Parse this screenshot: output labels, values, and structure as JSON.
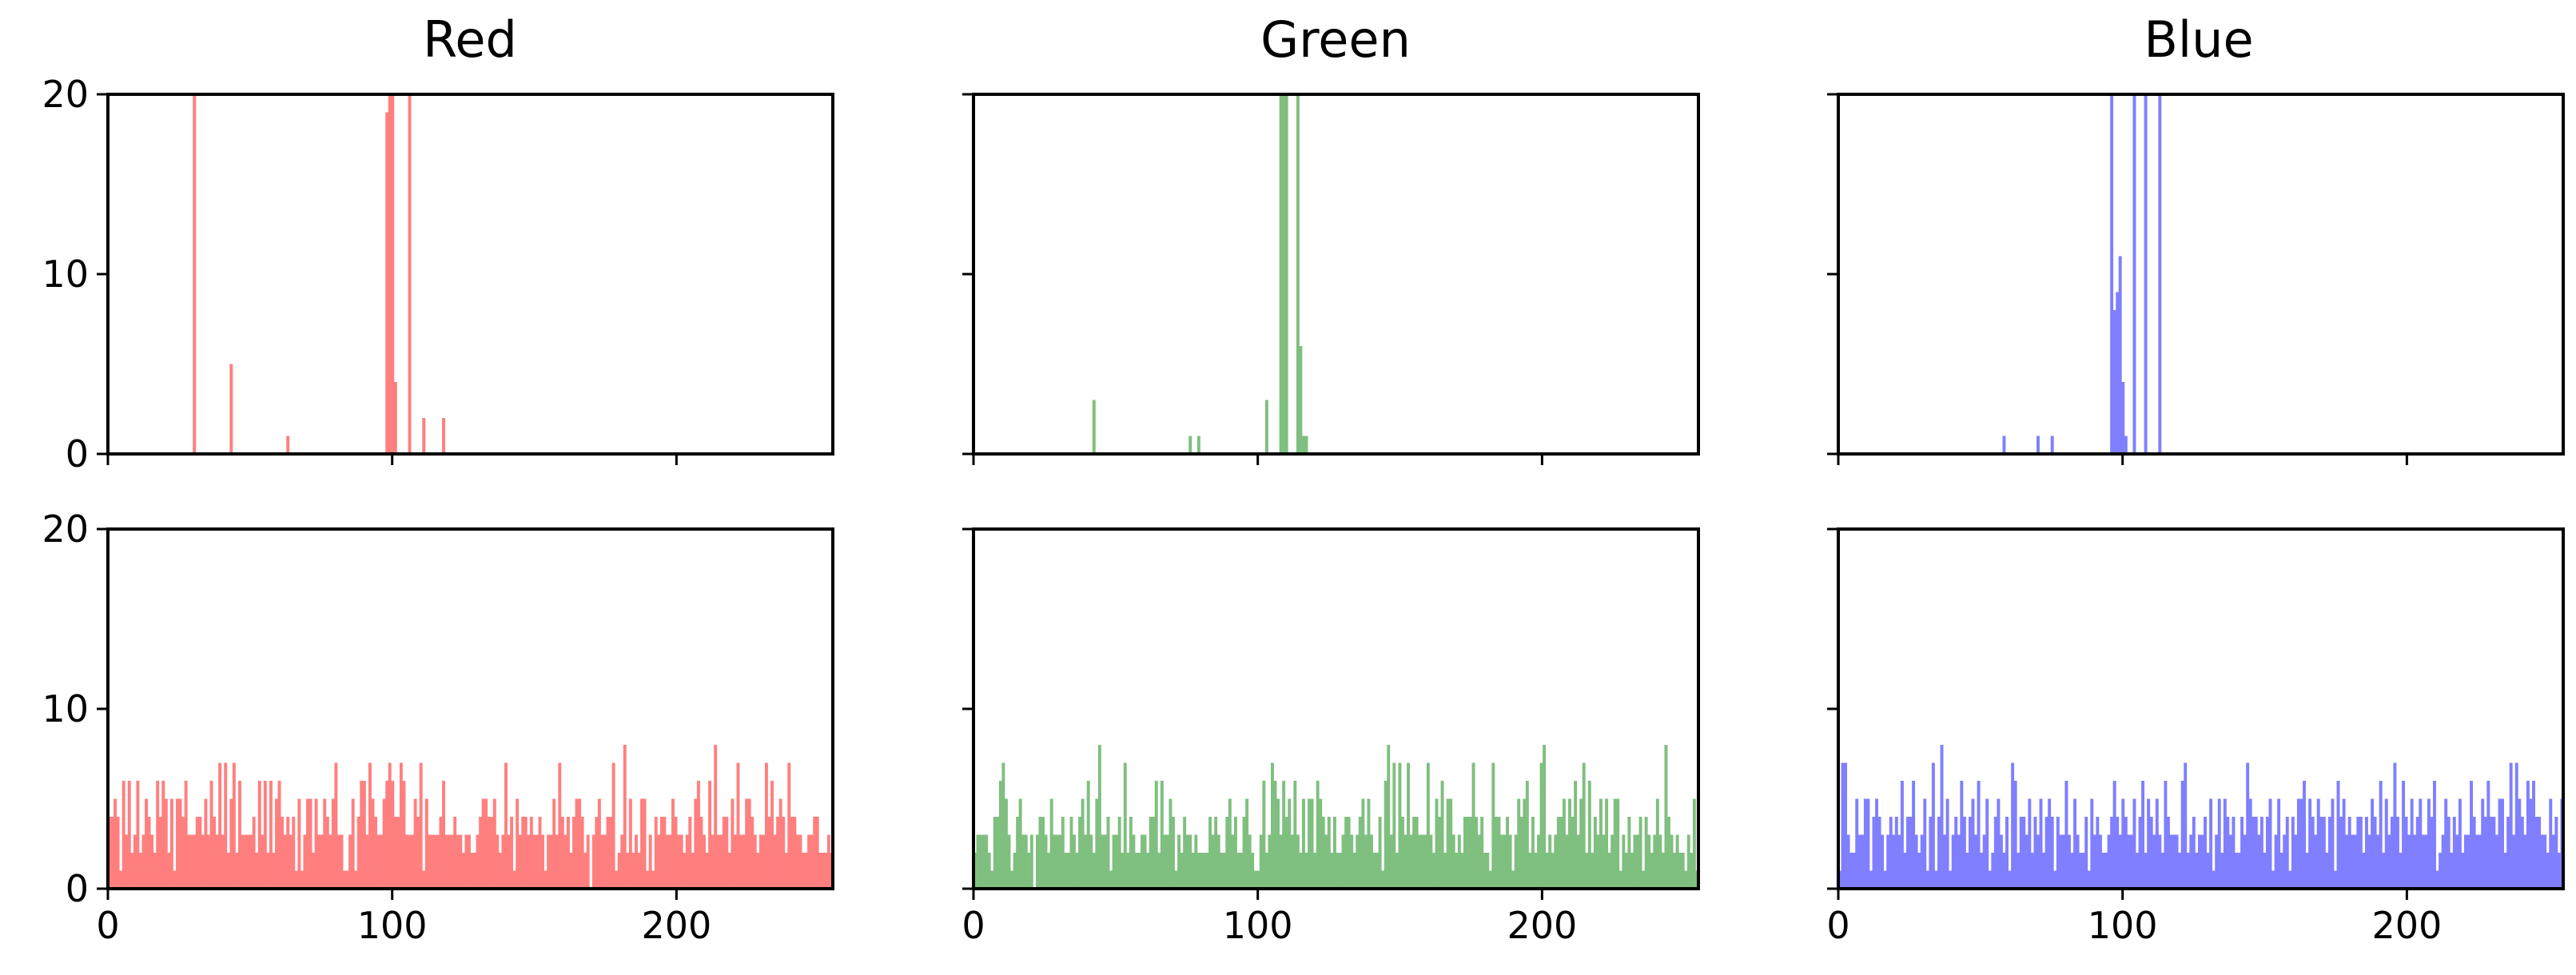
{
  "chart_data": {
    "type": "histogram-grid",
    "rows": 2,
    "columns": 3,
    "column_titles": [
      "Red",
      "Green",
      "Blue"
    ],
    "xlim": [
      0,
      255
    ],
    "ylim": [
      0,
      20
    ],
    "x_ticks": [
      0,
      100,
      200
    ],
    "y_ticks": [
      0,
      10,
      20
    ],
    "x_tick_labels_on_bottom_row_only": true,
    "y_tick_labels_on_first_column_only": true,
    "grid": false,
    "colors": {
      "Red": "#ff7f7f",
      "Green": "#7fbf7f",
      "Blue": "#7f7fff"
    },
    "panels": [
      {
        "row": 0,
        "column": "Red",
        "bins": [
          [
            30,
            60
          ],
          [
            43,
            5
          ],
          [
            63,
            1
          ],
          [
            98,
            19
          ],
          [
            99,
            60
          ],
          [
            100,
            60
          ],
          [
            101,
            4
          ],
          [
            106,
            60
          ],
          [
            111,
            2
          ],
          [
            118,
            2
          ]
        ]
      },
      {
        "row": 0,
        "column": "Green",
        "bins": [
          [
            42,
            3
          ],
          [
            76,
            1
          ],
          [
            79,
            1
          ],
          [
            103,
            3
          ],
          [
            108,
            60
          ],
          [
            109,
            60
          ],
          [
            110,
            60
          ],
          [
            114,
            60
          ],
          [
            115,
            6
          ],
          [
            116,
            1
          ],
          [
            117,
            1
          ]
        ]
      },
      {
        "row": 0,
        "column": "Blue",
        "bins": [
          [
            58,
            1
          ],
          [
            70,
            1
          ],
          [
            75,
            1
          ],
          [
            96,
            60
          ],
          [
            97,
            8
          ],
          [
            98,
            9
          ],
          [
            99,
            11
          ],
          [
            100,
            4
          ],
          [
            101,
            1
          ],
          [
            104,
            60
          ],
          [
            108,
            60
          ],
          [
            113,
            60
          ]
        ]
      },
      {
        "row": 1,
        "column": "Red",
        "values": [
          4,
          4,
          5,
          4,
          1,
          6,
          3,
          6,
          2,
          3,
          6,
          2,
          3,
          5,
          4,
          3,
          2,
          6,
          4,
          6,
          5,
          2,
          5,
          1,
          5,
          5,
          4,
          6,
          3,
          3,
          3,
          4,
          4,
          3,
          5,
          3,
          6,
          4,
          3,
          7,
          3,
          7,
          2,
          5,
          7,
          2,
          6,
          3,
          3,
          3,
          3,
          4,
          2,
          6,
          3,
          6,
          2,
          6,
          2,
          5,
          6,
          4,
          3,
          4,
          3,
          4,
          1,
          5,
          1,
          3,
          5,
          5,
          2,
          5,
          3,
          3,
          5,
          4,
          3,
          5,
          7,
          3,
          3,
          1,
          1,
          3,
          5,
          1,
          4,
          6,
          6,
          3,
          7,
          5,
          4,
          3,
          3,
          5,
          6,
          7,
          6,
          4,
          4,
          7,
          6,
          3,
          3,
          3,
          5,
          4,
          7,
          1,
          5,
          3,
          3,
          3,
          3,
          4,
          6,
          3,
          3,
          3,
          4,
          3,
          3,
          2,
          3,
          3,
          2,
          2,
          3,
          4,
          5,
          5,
          4,
          4,
          5,
          3,
          2,
          3,
          7,
          3,
          4,
          1,
          5,
          3,
          4,
          4,
          3,
          4,
          3,
          3,
          4,
          3,
          1,
          3,
          3,
          5,
          3,
          7,
          4,
          3,
          4,
          2,
          4,
          5,
          5,
          4,
          2,
          3,
          0,
          3,
          4,
          5,
          3,
          3,
          4,
          4,
          7,
          1,
          2,
          3,
          8,
          2,
          5,
          2,
          3,
          2,
          5,
          5,
          1,
          3,
          1,
          4,
          3,
          4,
          4,
          3,
          3,
          5,
          4,
          3,
          3,
          2,
          3,
          4,
          2,
          5,
          6,
          4,
          3,
          2,
          6,
          3,
          8,
          3,
          3,
          4,
          4,
          2,
          5,
          3,
          7,
          3,
          3,
          5,
          5,
          4,
          3,
          2,
          3,
          3,
          7,
          4,
          6,
          3,
          4,
          5,
          4,
          2,
          7,
          4,
          4,
          3,
          3,
          2,
          2,
          3,
          3,
          4,
          4,
          2,
          2,
          2,
          3,
          2
        ]
      },
      {
        "row": 1,
        "column": "Green",
        "values": [
          2,
          3,
          3,
          3,
          3,
          2,
          1,
          4,
          4,
          6,
          7,
          5,
          3,
          1,
          2,
          4,
          5,
          3,
          3,
          2,
          3,
          0,
          3,
          4,
          4,
          3,
          2,
          5,
          3,
          3,
          3,
          4,
          2,
          2,
          4,
          3,
          2,
          4,
          5,
          3,
          6,
          3,
          2,
          5,
          8,
          3,
          3,
          4,
          1,
          3,
          3,
          4,
          2,
          7,
          2,
          4,
          3,
          2,
          2,
          3,
          3,
          2,
          4,
          4,
          6,
          2,
          6,
          3,
          3,
          5,
          4,
          1,
          3,
          2,
          4,
          3,
          3,
          2,
          3,
          2,
          2,
          2,
          2,
          4,
          3,
          4,
          3,
          2,
          2,
          4,
          5,
          3,
          4,
          2,
          2,
          4,
          5,
          3,
          2,
          1,
          1,
          3,
          6,
          2,
          3,
          7,
          6,
          5,
          3,
          6,
          4,
          5,
          3,
          6,
          3,
          2,
          5,
          2,
          5,
          5,
          2,
          6,
          5,
          4,
          3,
          4,
          2,
          4,
          2,
          2,
          3,
          4,
          4,
          3,
          2,
          3,
          4,
          5,
          3,
          5,
          3,
          2,
          2,
          4,
          1,
          6,
          8,
          3,
          7,
          2,
          7,
          4,
          3,
          7,
          3,
          4,
          4,
          3,
          3,
          3,
          7,
          3,
          2,
          5,
          4,
          6,
          2,
          5,
          5,
          3,
          2,
          3,
          2,
          4,
          4,
          4,
          7,
          4,
          3,
          4,
          2,
          2,
          1,
          7,
          4,
          4,
          3,
          3,
          4,
          3,
          1,
          3,
          5,
          4,
          5,
          6,
          2,
          4,
          2,
          3,
          7,
          8,
          2,
          3,
          2,
          3,
          4,
          4,
          5,
          3,
          5,
          4,
          6,
          3,
          5,
          7,
          2,
          6,
          2,
          4,
          3,
          5,
          3,
          5,
          2,
          3,
          5,
          5,
          1,
          3,
          2,
          4,
          2,
          3,
          3,
          4,
          1,
          4,
          3,
          2,
          3,
          5,
          3,
          2,
          8,
          4,
          3,
          2,
          3,
          2,
          2,
          1,
          3,
          2,
          5,
          1
        ]
      },
      {
        "row": 1,
        "column": "Blue",
        "values": [
          1,
          7,
          7,
          3,
          2,
          2,
          5,
          3,
          3,
          5,
          5,
          1,
          4,
          5,
          4,
          3,
          1,
          3,
          4,
          3,
          4,
          3,
          6,
          2,
          4,
          4,
          6,
          3,
          2,
          3,
          5,
          1,
          4,
          7,
          1,
          4,
          8,
          3,
          5,
          1,
          3,
          4,
          3,
          6,
          4,
          2,
          4,
          5,
          3,
          6,
          2,
          3,
          5,
          1,
          2,
          4,
          5,
          3,
          2,
          4,
          1,
          7,
          6,
          2,
          4,
          4,
          3,
          5,
          2,
          4,
          3,
          5,
          2,
          4,
          5,
          4,
          1,
          4,
          3,
          3,
          6,
          3,
          2,
          5,
          3,
          2,
          2,
          4,
          1,
          5,
          3,
          4,
          3,
          2,
          2,
          3,
          4,
          6,
          4,
          3,
          5,
          4,
          3,
          3,
          5,
          2,
          4,
          6,
          2,
          5,
          4,
          3,
          5,
          3,
          2,
          6,
          4,
          3,
          3,
          3,
          2,
          6,
          7,
          2,
          3,
          4,
          2,
          3,
          3,
          4,
          2,
          5,
          1,
          3,
          5,
          2,
          5,
          4,
          3,
          4,
          2,
          2,
          4,
          3,
          7,
          5,
          4,
          4,
          3,
          4,
          2,
          4,
          5,
          1,
          3,
          5,
          2,
          3,
          4,
          1,
          4,
          3,
          5,
          5,
          6,
          2,
          5,
          4,
          3,
          5,
          4,
          4,
          2,
          4,
          5,
          1,
          6,
          4,
          5,
          3,
          4,
          3,
          3,
          4,
          4,
          2,
          4,
          3,
          5,
          4,
          3,
          6,
          2,
          5,
          3,
          4,
          7,
          4,
          2,
          6,
          4,
          3,
          5,
          3,
          4,
          5,
          3,
          3,
          5,
          4,
          6,
          1,
          2,
          3,
          5,
          4,
          2,
          4,
          3,
          5,
          2,
          3,
          3,
          6,
          4,
          3,
          3,
          5,
          4,
          6,
          4,
          4,
          3,
          5,
          5,
          2,
          4,
          7,
          3,
          7,
          5,
          4,
          3,
          6,
          5,
          6,
          4,
          4,
          3,
          3,
          2,
          5,
          3,
          4,
          2,
          5
        ]
      }
    ]
  }
}
